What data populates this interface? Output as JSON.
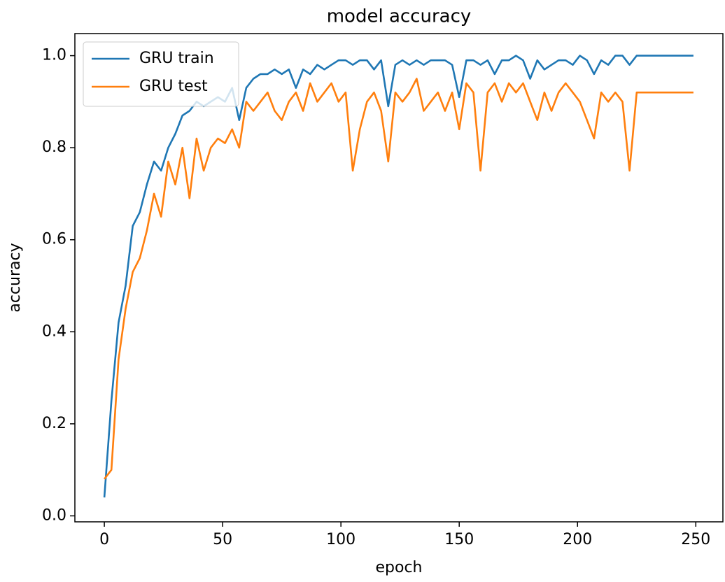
{
  "chart_data": {
    "type": "line",
    "title": "model accuracy",
    "x_label": "epoch",
    "y_label": "accuracy",
    "x": [
      0,
      3,
      6,
      9,
      12,
      15,
      18,
      21,
      24,
      27,
      30,
      33,
      36,
      39,
      42,
      45,
      48,
      51,
      54,
      57,
      60,
      63,
      66,
      69,
      72,
      75,
      78,
      81,
      84,
      87,
      90,
      93,
      96,
      99,
      102,
      105,
      108,
      111,
      114,
      117,
      120,
      123,
      126,
      129,
      132,
      135,
      138,
      141,
      144,
      147,
      150,
      153,
      156,
      159,
      162,
      165,
      168,
      171,
      174,
      177,
      180,
      183,
      186,
      189,
      192,
      195,
      198,
      201,
      204,
      207,
      210,
      213,
      216,
      219,
      222,
      225,
      228,
      231,
      234,
      237,
      240,
      243,
      246,
      249
    ],
    "series": [
      {
        "name": "GRU train",
        "color": "#1f77b4",
        "values": [
          0.04,
          0.25,
          0.42,
          0.5,
          0.63,
          0.66,
          0.72,
          0.77,
          0.75,
          0.8,
          0.83,
          0.87,
          0.88,
          0.9,
          0.89,
          0.9,
          0.91,
          0.9,
          0.93,
          0.86,
          0.93,
          0.95,
          0.96,
          0.96,
          0.97,
          0.96,
          0.97,
          0.93,
          0.97,
          0.96,
          0.98,
          0.97,
          0.98,
          0.99,
          0.99,
          0.98,
          0.99,
          0.99,
          0.97,
          0.99,
          0.89,
          0.98,
          0.99,
          0.98,
          0.99,
          0.98,
          0.99,
          0.99,
          0.99,
          0.98,
          0.91,
          0.99,
          0.99,
          0.98,
          0.99,
          0.96,
          0.99,
          0.99,
          1.0,
          0.99,
          0.95,
          0.99,
          0.97,
          0.98,
          0.99,
          0.99,
          0.98,
          1.0,
          0.99,
          0.96,
          0.99,
          0.98,
          1.0,
          1.0,
          0.98,
          1.0,
          1.0,
          1.0,
          1.0,
          1.0,
          1.0,
          1.0,
          1.0,
          1.0
        ]
      },
      {
        "name": "GRU test",
        "color": "#ff7f0e",
        "values": [
          0.08,
          0.1,
          0.34,
          0.45,
          0.53,
          0.56,
          0.62,
          0.7,
          0.65,
          0.77,
          0.72,
          0.8,
          0.69,
          0.82,
          0.75,
          0.8,
          0.82,
          0.81,
          0.84,
          0.8,
          0.9,
          0.88,
          0.9,
          0.92,
          0.88,
          0.86,
          0.9,
          0.92,
          0.88,
          0.94,
          0.9,
          0.92,
          0.94,
          0.9,
          0.92,
          0.75,
          0.84,
          0.9,
          0.92,
          0.88,
          0.77,
          0.92,
          0.9,
          0.92,
          0.95,
          0.88,
          0.9,
          0.92,
          0.88,
          0.92,
          0.84,
          0.94,
          0.92,
          0.75,
          0.92,
          0.94,
          0.9,
          0.94,
          0.92,
          0.94,
          0.9,
          0.86,
          0.92,
          0.88,
          0.92,
          0.94,
          0.92,
          0.9,
          0.86,
          0.82,
          0.92,
          0.9,
          0.92,
          0.9,
          0.75,
          0.92,
          0.92,
          0.92,
          0.92,
          0.92,
          0.92,
          0.92,
          0.92,
          0.92
        ]
      }
    ],
    "xlim": [
      -12.45,
      261.45
    ],
    "ylim": [
      -0.013,
      1.048
    ],
    "xticks": [
      0,
      50,
      100,
      150,
      200,
      250
    ],
    "yticks": [
      {
        "value": 0,
        "label": "0.0"
      },
      {
        "value": 0.2,
        "label": "0.2"
      },
      {
        "value": 0.4,
        "label": "0.4"
      },
      {
        "value": 0.6,
        "label": "0.6"
      },
      {
        "value": 0.8,
        "label": "0.8"
      },
      {
        "value": 1,
        "label": "1.0"
      }
    ],
    "legend": "upper left"
  }
}
